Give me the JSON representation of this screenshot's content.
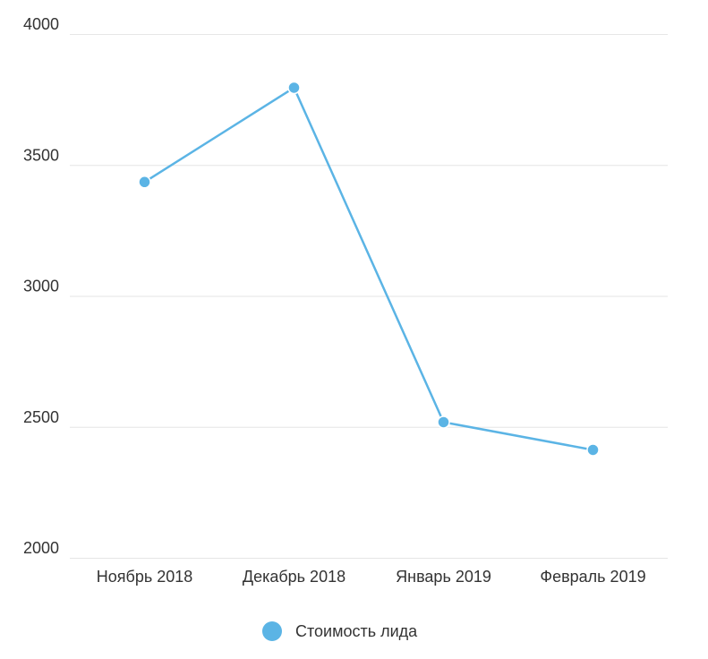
{
  "chart_data": {
    "type": "line",
    "categories": [
      "Ноябрь 2018",
      "Декабрь 2018",
      "Январь 2019",
      "Февраль 2019"
    ],
    "series": [
      {
        "name": "Стоимость лида",
        "values": [
          3435,
          3795,
          2518,
          2412
        ],
        "color": "#5bb4e5"
      }
    ],
    "yticks": [
      2000,
      2500,
      3000,
      3500,
      4000
    ],
    "ylim": [
      2000,
      4000
    ],
    "grid": true,
    "legend_position": "bottom-center"
  }
}
